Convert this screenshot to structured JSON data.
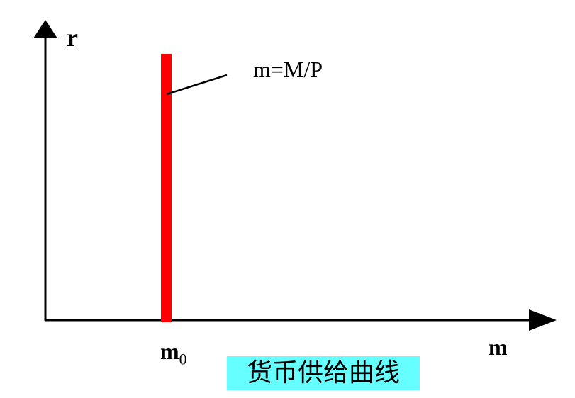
{
  "diagram": {
    "y_axis_label": "r",
    "x_axis_label": "m",
    "curve_label": "m=M/P",
    "tick_label_base": "m",
    "tick_label_sub": "0",
    "caption": "货币供给曲线",
    "colors": {
      "curve": "#ff0000",
      "caption_background": "#66ffff",
      "axes": "#000000"
    }
  }
}
